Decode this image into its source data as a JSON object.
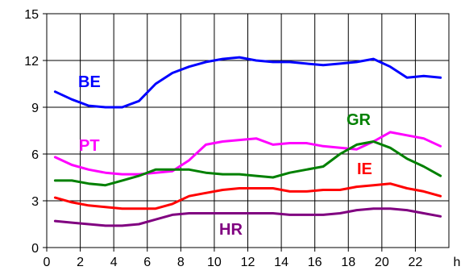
{
  "chart_data": {
    "type": "line",
    "title": "",
    "xlabel": "",
    "ylabel": "",
    "x_unit_label": "h",
    "xlim": [
      0,
      24
    ],
    "ylim": [
      0,
      15
    ],
    "x_ticks": [
      0,
      2,
      4,
      6,
      8,
      10,
      12,
      14,
      16,
      18,
      20,
      22
    ],
    "y_ticks": [
      0,
      3,
      6,
      9,
      12,
      15
    ],
    "grid": true,
    "legend": "inline labels",
    "x": [
      0.5,
      1.5,
      2.5,
      3.5,
      4.5,
      5.5,
      6.5,
      7.5,
      8.5,
      9.5,
      10.5,
      11.5,
      12.5,
      13.5,
      14.5,
      15.5,
      16.5,
      17.5,
      18.5,
      19.5,
      20.5,
      21.5,
      22.5,
      23.5
    ],
    "series": [
      {
        "name": "BE",
        "color": "#0000ff",
        "values": [
          10.0,
          9.5,
          9.1,
          9.0,
          9.0,
          9.4,
          10.5,
          11.2,
          11.6,
          11.9,
          12.1,
          12.2,
          12.0,
          11.9,
          11.9,
          11.8,
          11.7,
          11.8,
          11.9,
          12.1,
          11.6,
          10.9,
          11.0,
          10.9
        ]
      },
      {
        "name": "PT",
        "color": "#ff00ff",
        "values": [
          5.8,
          5.3,
          5.0,
          4.8,
          4.7,
          4.7,
          4.8,
          4.9,
          5.6,
          6.6,
          6.8,
          6.9,
          7.0,
          6.6,
          6.7,
          6.7,
          6.5,
          6.4,
          6.3,
          6.8,
          7.4,
          7.2,
          7.0,
          6.5
        ]
      },
      {
        "name": "GR",
        "color": "#008000",
        "values": [
          4.3,
          4.3,
          4.1,
          4.0,
          4.3,
          4.6,
          5.0,
          5.0,
          5.0,
          4.8,
          4.7,
          4.7,
          4.6,
          4.5,
          4.8,
          5.0,
          5.2,
          6.0,
          6.6,
          6.8,
          6.4,
          5.7,
          5.2,
          4.6
        ]
      },
      {
        "name": "IE",
        "color": "#ff0000",
        "values": [
          3.2,
          2.9,
          2.7,
          2.6,
          2.5,
          2.5,
          2.5,
          2.8,
          3.3,
          3.5,
          3.7,
          3.8,
          3.8,
          3.8,
          3.6,
          3.6,
          3.7,
          3.7,
          3.9,
          4.0,
          4.1,
          3.8,
          3.6,
          3.3
        ]
      },
      {
        "name": "HR",
        "color": "#800080",
        "values": [
          1.7,
          1.6,
          1.5,
          1.4,
          1.4,
          1.5,
          1.8,
          2.1,
          2.2,
          2.2,
          2.2,
          2.2,
          2.2,
          2.2,
          2.1,
          2.1,
          2.1,
          2.2,
          2.4,
          2.5,
          2.5,
          2.4,
          2.2,
          2.0
        ]
      }
    ]
  }
}
